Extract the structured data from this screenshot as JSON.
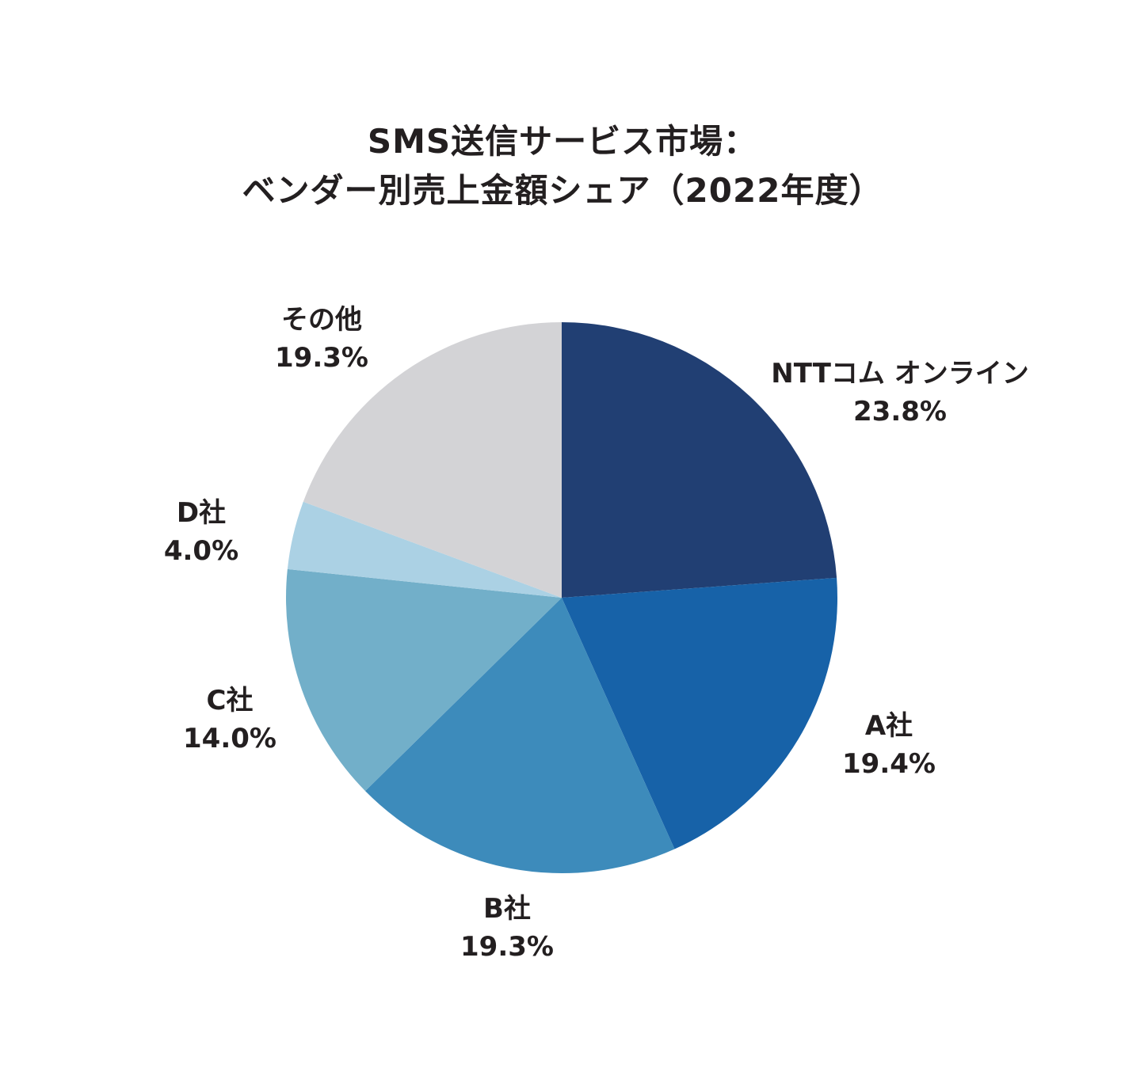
{
  "title": {
    "line1": "SMS送信サービス市場：",
    "line2": "ベンダー別売上金額シェア（2022年度）"
  },
  "chart_data": {
    "type": "pie",
    "title": "SMS送信サービス市場：ベンダー別売上金額シェア（2022年度）",
    "categories": [
      "NTTコム オンライン",
      "A社",
      "B社",
      "C社",
      "D社",
      "その他"
    ],
    "values": [
      23.8,
      19.4,
      19.3,
      14.0,
      4.0,
      19.3
    ],
    "unit": "%",
    "colors": [
      "#213f73",
      "#1762a8",
      "#3d8bbb",
      "#72afc9",
      "#abd1e4",
      "#d3d3d6"
    ],
    "start_angle": "12 o'clock",
    "direction": "clockwise",
    "legend": "none (direct labels)"
  },
  "labels": [
    {
      "name": "NTTコム オンライン",
      "value": "23.8%"
    },
    {
      "name": "A社",
      "value": "19.4%"
    },
    {
      "name": "B社",
      "value": "19.3%"
    },
    {
      "name": "C社",
      "value": "14.0%"
    },
    {
      "name": "D社",
      "value": "4.0%"
    },
    {
      "name": "その他",
      "value": "19.3%"
    }
  ]
}
